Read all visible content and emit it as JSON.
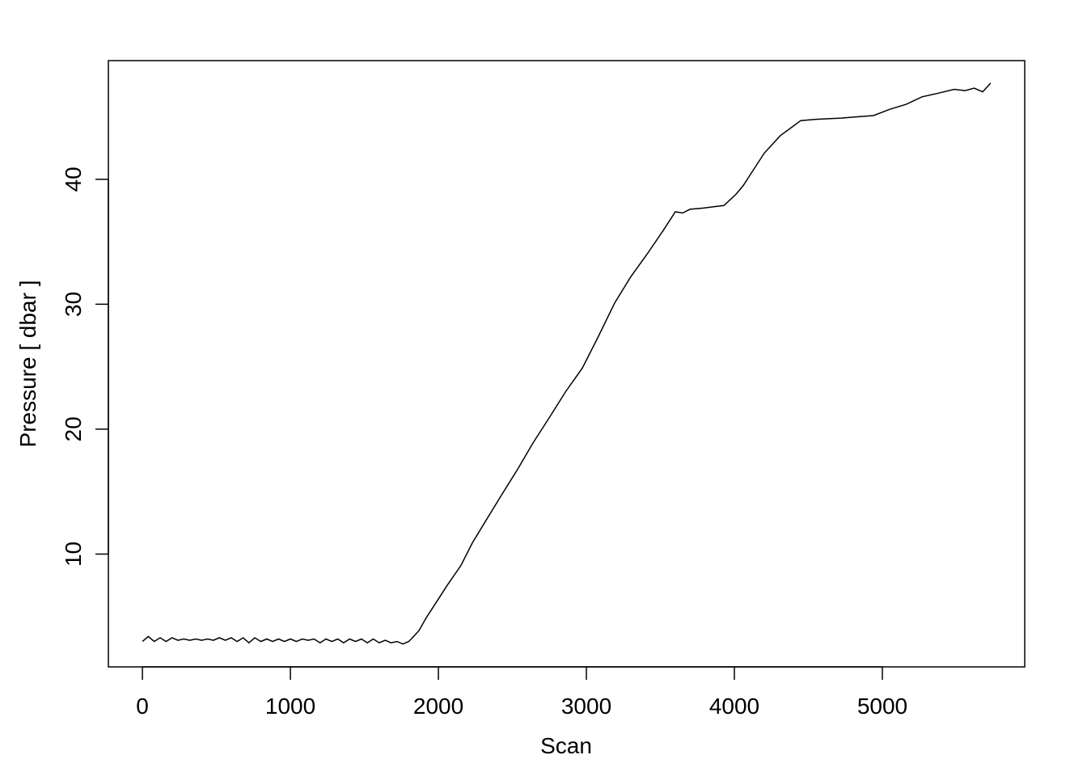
{
  "chart_data": {
    "type": "line",
    "title": "",
    "xlabel": "Scan",
    "ylabel": "Pressure [ dbar ]",
    "xlim": [
      -230,
      5962
    ],
    "ylim": [
      0.97,
      49.5
    ],
    "xticks": [
      0,
      1000,
      2000,
      3000,
      4000,
      5000
    ],
    "yticks": [
      10,
      20,
      30,
      40
    ],
    "grid": false,
    "line_color": "#000000",
    "series": [
      {
        "x": [
          0,
          40,
          80,
          120,
          160,
          200,
          240,
          280,
          320,
          360,
          400,
          440,
          480,
          520,
          560,
          600,
          640,
          680,
          720,
          760,
          800,
          840,
          880,
          920,
          960,
          1000,
          1040,
          1080,
          1120,
          1160,
          1200,
          1240,
          1280,
          1320,
          1360,
          1400,
          1440,
          1480,
          1520,
          1560,
          1600,
          1640,
          1680,
          1720,
          1760,
          1800,
          1825,
          1870,
          1918,
          1989,
          2060,
          2153,
          2230,
          2317,
          2420,
          2536,
          2640,
          2754,
          2860,
          2973,
          3080,
          3191,
          3300,
          3410,
          3519,
          3601,
          3650,
          3700,
          3792,
          3860,
          3929,
          4011,
          4060,
          4120,
          4202,
          4311,
          4380,
          4448,
          4550,
          4721,
          4830,
          4940,
          5049,
          5160,
          5268,
          5380,
          5486,
          5560,
          5620,
          5678,
          5732
        ],
        "y": [
          3.0,
          3.4,
          3.0,
          3.3,
          3.0,
          3.3,
          3.1,
          3.2,
          3.1,
          3.2,
          3.1,
          3.2,
          3.1,
          3.3,
          3.1,
          3.3,
          3.0,
          3.3,
          2.9,
          3.3,
          3.0,
          3.2,
          3.0,
          3.2,
          3.0,
          3.2,
          3.0,
          3.2,
          3.1,
          3.2,
          2.9,
          3.2,
          3.0,
          3.2,
          2.9,
          3.2,
          3.0,
          3.2,
          2.9,
          3.2,
          2.9,
          3.1,
          2.9,
          3.0,
          2.8,
          3.0,
          3.3,
          3.9,
          4.9,
          6.2,
          7.5,
          9.1,
          10.9,
          12.6,
          14.6,
          16.8,
          18.9,
          21.0,
          23.0,
          24.9,
          27.4,
          30.1,
          32.2,
          34.0,
          35.9,
          37.4,
          37.3,
          37.6,
          37.7,
          37.8,
          37.9,
          38.8,
          39.5,
          40.6,
          42.1,
          43.5,
          44.1,
          44.7,
          44.8,
          44.9,
          45.0,
          45.1,
          45.6,
          46.0,
          46.6,
          46.9,
          47.2,
          47.1,
          47.3,
          47.0,
          47.7
        ]
      }
    ]
  }
}
